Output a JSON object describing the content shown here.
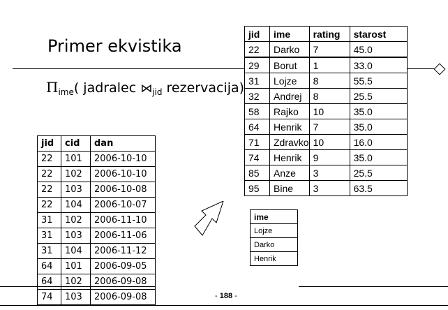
{
  "slide": {
    "title": "Primer ekvistika",
    "formula": {
      "pi": "Π",
      "pi_sub": "ime",
      "open": "( jadralec ",
      "join": "⋈",
      "join_sub": "jid",
      "close": " rezervacija)"
    },
    "page": {
      "prefix": "- ",
      "number": "188",
      "suffix": " -"
    }
  },
  "jadralec": {
    "headers": [
      "jid",
      "ime",
      "rating",
      "starost"
    ],
    "rows": [
      [
        "22",
        "Darko",
        "7",
        "45.0"
      ],
      [
        "29",
        "Borut",
        "1",
        "33.0"
      ],
      [
        "31",
        "Lojze",
        "8",
        "55.5"
      ],
      [
        "32",
        "Andrej",
        "8",
        "25.5"
      ],
      [
        "58",
        "Rajko",
        "10",
        "35.0"
      ],
      [
        "64",
        "Henrik",
        "7",
        "35.0"
      ],
      [
        "71",
        "Zdravko",
        "10",
        "16.0"
      ],
      [
        "74",
        "Henrik",
        "9",
        "35.0"
      ],
      [
        "85",
        "Anze",
        "3",
        "25.5"
      ],
      [
        "95",
        "Bine",
        "3",
        "63.5"
      ]
    ]
  },
  "rezervacija": {
    "headers": [
      "jid",
      "cid",
      "dan"
    ],
    "rows": [
      [
        "22",
        "101",
        "2006-10-10"
      ],
      [
        "22",
        "102",
        "2006-10-10"
      ],
      [
        "22",
        "103",
        "2006-10-08"
      ],
      [
        "22",
        "104",
        "2006-10-07"
      ],
      [
        "31",
        "102",
        "2006-11-10"
      ],
      [
        "31",
        "103",
        "2006-11-06"
      ],
      [
        "31",
        "104",
        "2006-11-12"
      ],
      [
        "64",
        "101",
        "2006-09-05"
      ],
      [
        "64",
        "102",
        "2006-09-08"
      ],
      [
        "74",
        "103",
        "2006-09-08"
      ]
    ]
  },
  "result": {
    "headers": [
      "ime"
    ],
    "rows": [
      [
        "Lojze"
      ],
      [
        "Darko"
      ],
      [
        "Henrik"
      ]
    ]
  }
}
